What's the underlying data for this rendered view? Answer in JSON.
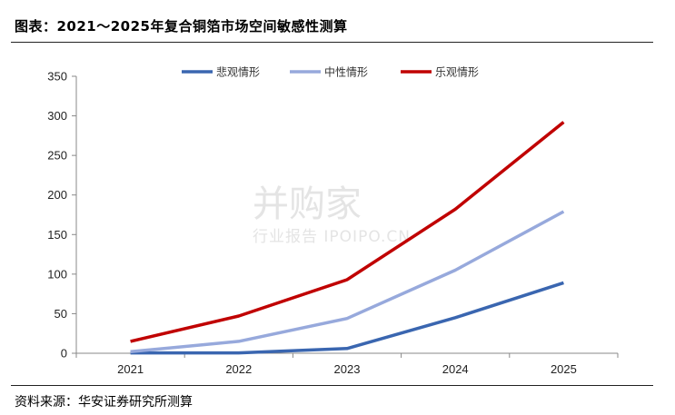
{
  "header": {
    "title": "图表：2021～2025年复合铜箔市场空间敏感性测算"
  },
  "footer": {
    "source": "资料来源：华安证券研究所测算"
  },
  "watermark": {
    "main": "并购家",
    "sub": "行业报告 IPOIPO.CN"
  },
  "chart_data": {
    "type": "line",
    "title": "",
    "xlabel": "",
    "ylabel": "",
    "categories": [
      "2021",
      "2022",
      "2023",
      "2024",
      "2025"
    ],
    "ylim": [
      0,
      350
    ],
    "yticks": [
      0,
      50,
      100,
      150,
      200,
      250,
      300,
      350
    ],
    "grid": false,
    "legend_position": "top-center",
    "series": [
      {
        "name": "悲观情形",
        "color": "#3a66b0",
        "values": [
          0.5,
          0.5,
          6,
          45,
          89
        ]
      },
      {
        "name": "中性情形",
        "color": "#97a9dc",
        "values": [
          2,
          15,
          44,
          105,
          179
        ]
      },
      {
        "name": "乐观情形",
        "color": "#c00000",
        "values": [
          15,
          47,
          93,
          182,
          292
        ]
      }
    ]
  }
}
